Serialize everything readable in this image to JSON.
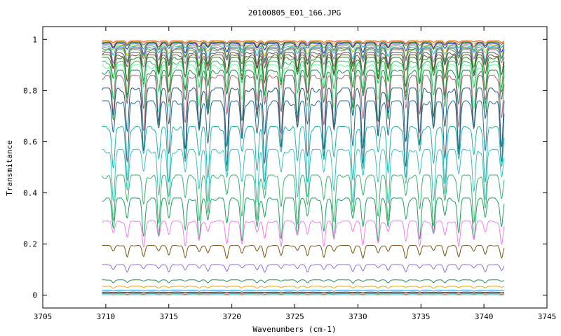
{
  "chart_data": {
    "type": "line",
    "title": "20100805_E01_166.JPG",
    "xlabel": "Wavenumbers (cm-1)",
    "ylabel": "Transmitance",
    "xlim": [
      3705,
      3745
    ],
    "ylim": [
      -0.05,
      1.05
    ],
    "xticks": [
      3705,
      3710,
      3715,
      3720,
      3725,
      3730,
      3735,
      3740,
      3745
    ],
    "yticks": [
      0,
      0.2,
      0.4,
      0.6,
      0.8,
      1
    ],
    "ytick_labels": [
      "0",
      "0.2",
      "0.4",
      "0.6",
      "0.8",
      "1"
    ],
    "grid": false,
    "legend": "none",
    "x_range": [
      3709.7,
      3741.6
    ],
    "absorption_line_positions": [
      3710.6,
      3711.7,
      3713.0,
      3714.2,
      3715.0,
      3716.3,
      3717.4,
      3718.1,
      3719.6,
      3720.8,
      3722.0,
      3722.6,
      3723.9,
      3725.2,
      3726.0,
      3727.3,
      3728.1,
      3729.6,
      3730.4,
      3731.6,
      3732.4,
      3733.8,
      3734.9,
      3736.0,
      3736.9,
      3738.0,
      3739.2,
      3740.1,
      3741.4
    ],
    "series": [
      {
        "baseline": 0.995,
        "depth": 0.01,
        "color": "#e6550d"
      },
      {
        "baseline": 0.993,
        "depth": 0.015,
        "color": "#fdae6b"
      },
      {
        "baseline": 0.99,
        "depth": 0.02,
        "color": "#8c564b"
      },
      {
        "baseline": 0.988,
        "depth": 0.03,
        "color": "#31a354"
      },
      {
        "baseline": 0.985,
        "depth": 0.04,
        "color": "#1f1fcc"
      },
      {
        "baseline": 0.98,
        "depth": 0.05,
        "color": "#bcbd22"
      },
      {
        "baseline": 0.975,
        "depth": 0.06,
        "color": "#17becf"
      },
      {
        "baseline": 0.97,
        "depth": 0.07,
        "color": "#9467bd"
      },
      {
        "baseline": 0.965,
        "depth": 0.08,
        "color": "#2ca02c"
      },
      {
        "baseline": 0.96,
        "depth": 0.09,
        "color": "#7f7f7f"
      },
      {
        "baseline": 0.95,
        "depth": 0.11,
        "color": "#555555"
      },
      {
        "baseline": 0.94,
        "depth": 0.13,
        "color": "#6b4c2a"
      },
      {
        "baseline": 0.93,
        "depth": 0.15,
        "color": "#228b22"
      },
      {
        "baseline": 0.915,
        "depth": 0.18,
        "color": "#3cb371"
      },
      {
        "baseline": 0.9,
        "depth": 0.2,
        "color": "#66ff99"
      },
      {
        "baseline": 0.88,
        "depth": 0.22,
        "color": "#2e8b57"
      },
      {
        "baseline": 0.86,
        "depth": 0.23,
        "color": "#b5667a"
      },
      {
        "baseline": 0.81,
        "depth": 0.24,
        "color": "#1f5a78"
      },
      {
        "baseline": 0.76,
        "depth": 0.25,
        "color": "#2a6a8a"
      },
      {
        "baseline": 0.66,
        "depth": 0.22,
        "color": "#20b2aa"
      },
      {
        "baseline": 0.57,
        "depth": 0.21,
        "color": "#40c0c0"
      },
      {
        "baseline": 0.47,
        "depth": 0.19,
        "color": "#3cb371"
      },
      {
        "baseline": 0.38,
        "depth": 0.17,
        "color": "#20a060"
      },
      {
        "baseline": 0.29,
        "depth": 0.1,
        "color": "#ee82ee"
      },
      {
        "baseline": 0.195,
        "depth": 0.05,
        "color": "#7a5210"
      },
      {
        "baseline": 0.12,
        "depth": 0.03,
        "color": "#9370db"
      },
      {
        "baseline": 0.06,
        "depth": 0.012,
        "color": "#2e8b57"
      },
      {
        "baseline": 0.035,
        "depth": 0.008,
        "color": "#ffa500"
      },
      {
        "baseline": 0.02,
        "depth": 0.005,
        "color": "#1e90ff"
      },
      {
        "baseline": 0.012,
        "depth": 0.003,
        "color": "#000000"
      },
      {
        "baseline": 0.006,
        "depth": 0.002,
        "color": "#ff4500"
      },
      {
        "baseline": 0.002,
        "depth": 0.001,
        "color": "#00ced1"
      }
    ]
  }
}
